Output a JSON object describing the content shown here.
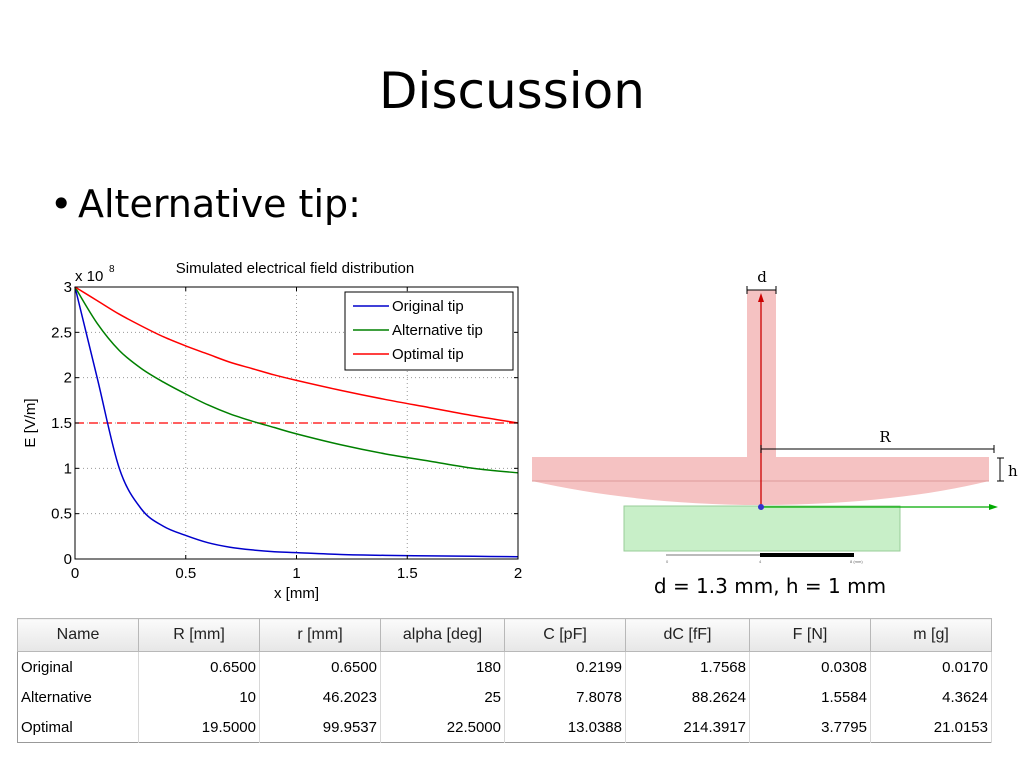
{
  "slide": {
    "title": "Discussion",
    "bullet_symbol": "•",
    "bullet_text": "Alternative tip:"
  },
  "chart_data": {
    "type": "line",
    "title": "Simulated electrical field distribution",
    "xlabel": "x [mm]",
    "ylabel": "E [V/m]",
    "y_multiplier": "x 10",
    "y_multiplier_exp": "8",
    "xlim": [
      0,
      2
    ],
    "ylim": [
      0,
      3
    ],
    "xticks": [
      0,
      0.5,
      1,
      1.5,
      2
    ],
    "xtick_labels": [
      "0",
      "0.5",
      "1",
      "1.5",
      "2"
    ],
    "yticks": [
      0,
      0.5,
      1,
      1.5,
      2,
      2.5,
      3
    ],
    "ytick_labels": [
      "0",
      "0.5",
      "1",
      "1.5",
      "2",
      "2.5",
      "3"
    ],
    "grid": true,
    "legend_position": "top-right",
    "x": [
      0,
      0.1,
      0.2,
      0.3,
      0.4,
      0.5,
      0.6,
      0.7,
      0.8,
      0.9,
      1.0,
      1.2,
      1.4,
      1.6,
      1.8,
      2.0
    ],
    "series": [
      {
        "name": "Original tip",
        "color": "#0000cc",
        "values": [
          3.0,
          2.0,
          1.0,
          0.55,
          0.36,
          0.26,
          0.18,
          0.13,
          0.1,
          0.08,
          0.07,
          0.05,
          0.04,
          0.035,
          0.03,
          0.025
        ]
      },
      {
        "name": "Alternative tip",
        "color": "#008000",
        "values": [
          3.0,
          2.6,
          2.3,
          2.1,
          1.95,
          1.82,
          1.7,
          1.6,
          1.52,
          1.45,
          1.38,
          1.26,
          1.16,
          1.08,
          1.0,
          0.95
        ]
      },
      {
        "name": "Optimal tip",
        "color": "#ff0000",
        "values": [
          3.0,
          2.85,
          2.7,
          2.57,
          2.45,
          2.35,
          2.26,
          2.17,
          2.1,
          2.03,
          1.97,
          1.86,
          1.76,
          1.67,
          1.58,
          1.5
        ]
      }
    ],
    "reference_line": {
      "y": 1.5,
      "style": "dashed",
      "color": "#ff0000"
    }
  },
  "diagram": {
    "label_d": "d",
    "label_R": "R",
    "label_h": "h",
    "scale_labels": [
      "0",
      "4",
      "8 (mm)"
    ],
    "tip_color": "#f4b5b5",
    "sample_color": "#c8efc8",
    "axis_color": "#cc0000",
    "x_axis_color": "#00aa00",
    "caption": "d = 1.3 mm, h = 1 mm"
  },
  "table": {
    "columns": [
      "Name",
      "R [mm]",
      "r [mm]",
      "alpha [deg]",
      "C [pF]",
      "dC [fF]",
      "F [N]",
      "m [g]"
    ],
    "rows": [
      [
        "Original",
        "0.6500",
        "0.6500",
        "180",
        "0.2199",
        "1.7568",
        "0.0308",
        "0.0170"
      ],
      [
        "Alternative",
        "10",
        "46.2023",
        "25",
        "7.8078",
        "88.2624",
        "1.5584",
        "4.3624"
      ],
      [
        "Optimal",
        "19.5000",
        "99.9537",
        "22.5000",
        "13.0388",
        "214.3917",
        "3.7795",
        "21.0153"
      ]
    ]
  }
}
